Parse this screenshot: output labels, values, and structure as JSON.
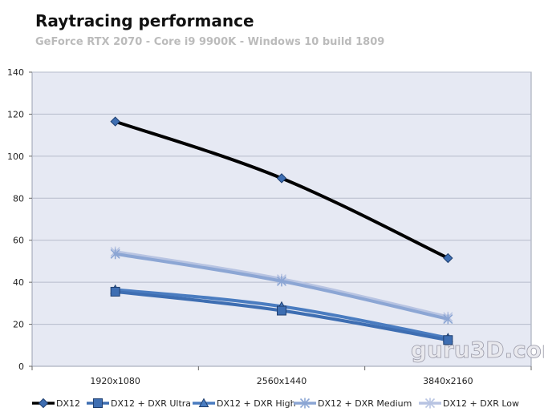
{
  "chart_data": {
    "type": "line",
    "title": "Raytracing  performance",
    "subtitle": "GeForce RTX 2070 - Core i9 9900K - Windows 10 build 1809",
    "categories": [
      "1920x1080",
      "2560x1440",
      "3840x2160"
    ],
    "ylim": [
      0,
      140
    ],
    "yticks": [
      0,
      20,
      40,
      60,
      80,
      100,
      120,
      140
    ],
    "grid": true,
    "legend_position": "bottom",
    "watermark": "guru3D.com",
    "series": [
      {
        "name": "DX12",
        "values": [
          116.5,
          89.5,
          51.5
        ],
        "color": "#000000",
        "width": 4,
        "marker": "diamond"
      },
      {
        "name": "DX12 + DXR Ultra",
        "values": [
          35.5,
          26.5,
          12.5
        ],
        "color": "#3e6eb2",
        "width": 4,
        "marker": "square"
      },
      {
        "name": "DX12 + DXR High",
        "values": [
          36.5,
          28.5,
          13.5
        ],
        "color": "#4a7cc0",
        "width": 4,
        "marker": "triangle"
      },
      {
        "name": "DX12 + DXR Medium",
        "values": [
          53.5,
          40.5,
          22.5
        ],
        "color": "#8ca6d4",
        "width": 4,
        "marker": "x"
      },
      {
        "name": "DX12 + DXR Low",
        "values": [
          54.5,
          41.5,
          23.5
        ],
        "color": "#b8c4e2",
        "width": 4,
        "marker": "x"
      }
    ]
  }
}
